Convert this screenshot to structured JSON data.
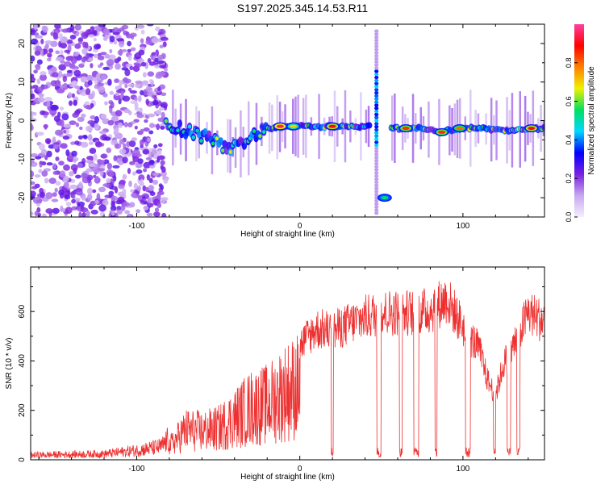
{
  "title": "S197.2025.345.14.53.R11",
  "chart_data": [
    {
      "type": "heatmap",
      "name": "spectrogram",
      "xlabel": "Height of straight line (km)",
      "ylabel": "Frequency (Hz)",
      "xlim": [
        -165,
        150
      ],
      "ylim": [
        -25,
        25
      ],
      "xticks": [
        -100,
        0,
        100
      ],
      "yticks": [
        -20,
        -10,
        0,
        10,
        20
      ],
      "colorbar": {
        "label": "Normalized spectral amplitude",
        "range": [
          0.0,
          1.0
        ],
        "ticks": [
          "0.0",
          "0.2",
          "0.4",
          "0.6",
          "0.8"
        ],
        "tick_values": [
          0.0,
          0.2,
          0.4,
          0.6,
          0.8
        ],
        "colors": [
          "#ffffff",
          "#c8a8f0",
          "#7a20e0",
          "#0000ff",
          "#00d8ff",
          "#00e060",
          "#f0f000",
          "#ff8000",
          "#ff0000",
          "#ff40a0"
        ]
      },
      "ridge": [
        {
          "x": -82,
          "y": -1.5
        },
        {
          "x": -70,
          "y": -2.5
        },
        {
          "x": -60,
          "y": -4
        },
        {
          "x": -50,
          "y": -6
        },
        {
          "x": -40,
          "y": -7
        },
        {
          "x": -30,
          "y": -4
        },
        {
          "x": -20,
          "y": -2
        },
        {
          "x": -10,
          "y": -1.5
        },
        {
          "x": 0,
          "y": -1.5
        },
        {
          "x": 10,
          "y": -1.5
        },
        {
          "x": 20,
          "y": -1.5
        },
        {
          "x": 30,
          "y": -1.5
        },
        {
          "x": 40,
          "y": -1.5
        },
        {
          "x": 45,
          "y": -1.5
        },
        {
          "x": 57,
          "y": -2
        },
        {
          "x": 65,
          "y": -2
        },
        {
          "x": 75,
          "y": -2
        },
        {
          "x": 85,
          "y": -3
        },
        {
          "x": 98,
          "y": -2
        },
        {
          "x": 110,
          "y": -2
        },
        {
          "x": 120,
          "y": -2.5
        },
        {
          "x": 130,
          "y": -2.5
        },
        {
          "x": 140,
          "y": -2
        },
        {
          "x": 150,
          "y": -2
        }
      ],
      "hot_spots": [
        {
          "x": -12,
          "y": -1.5,
          "amp": 0.95
        },
        {
          "x": -4,
          "y": -1.5,
          "amp": 0.7
        },
        {
          "x": 20,
          "y": -1.5,
          "amp": 0.9
        },
        {
          "x": 52,
          "y": -20,
          "amp": 0.55
        },
        {
          "x": 65,
          "y": -2,
          "amp": 0.85
        },
        {
          "x": 87,
          "y": -3,
          "amp": 0.85
        },
        {
          "x": 98,
          "y": -2,
          "amp": 0.8
        },
        {
          "x": 142,
          "y": -2,
          "amp": 0.9
        }
      ],
      "noise_region_x": [
        -165,
        -82
      ],
      "gap_x": [
        44,
        56
      ]
    },
    {
      "type": "line",
      "name": "snr",
      "xlabel": "Height of straight line (km)",
      "ylabel": "SNR (10 * v/v)",
      "xlim": [
        -165,
        150
      ],
      "ylim": [
        0,
        780
      ],
      "xticks": [
        -100,
        0,
        100
      ],
      "yticks": [
        0,
        200,
        400,
        600
      ],
      "color": "#ee3030",
      "envelope": [
        {
          "x": -165,
          "y": 20
        },
        {
          "x": -120,
          "y": 25
        },
        {
          "x": -100,
          "y": 40
        },
        {
          "x": -85,
          "y": 55
        },
        {
          "x": -80,
          "y": 90
        },
        {
          "x": -70,
          "y": 200
        },
        {
          "x": -60,
          "y": 190
        },
        {
          "x": -50,
          "y": 210
        },
        {
          "x": -40,
          "y": 280
        },
        {
          "x": -30,
          "y": 350
        },
        {
          "x": -20,
          "y": 370
        },
        {
          "x": -10,
          "y": 450
        },
        {
          "x": 0,
          "y": 500
        },
        {
          "x": 10,
          "y": 570
        },
        {
          "x": 20,
          "y": 560
        },
        {
          "x": 30,
          "y": 590
        },
        {
          "x": 40,
          "y": 620
        },
        {
          "x": 50,
          "y": 640
        },
        {
          "x": 60,
          "y": 640
        },
        {
          "x": 70,
          "y": 640
        },
        {
          "x": 80,
          "y": 650
        },
        {
          "x": 90,
          "y": 700
        },
        {
          "x": 100,
          "y": 580
        },
        {
          "x": 110,
          "y": 480
        },
        {
          "x": 115,
          "y": 350
        },
        {
          "x": 120,
          "y": 280
        },
        {
          "x": 125,
          "y": 420
        },
        {
          "x": 130,
          "y": 480
        },
        {
          "x": 140,
          "y": 640
        },
        {
          "x": 150,
          "y": 600
        }
      ]
    }
  ]
}
